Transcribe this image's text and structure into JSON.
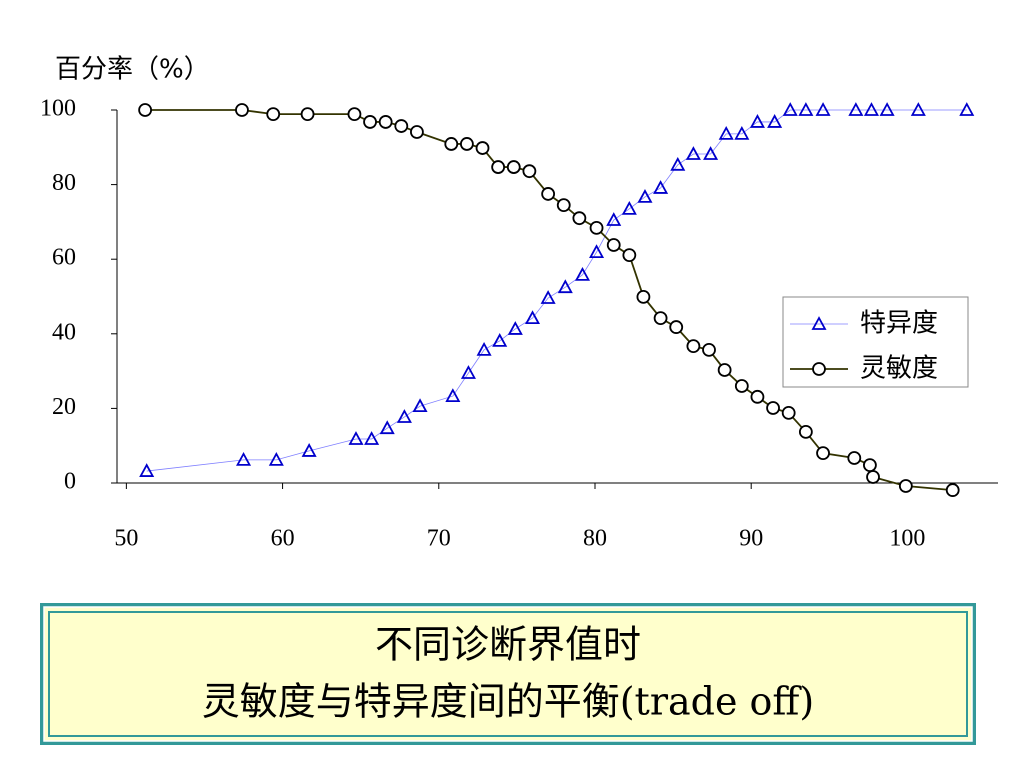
{
  "chart_data": {
    "type": "line",
    "y_axis_label": "百分率（%）",
    "caption_lines": [
      "不同诊断界值时",
      "灵敏度与特异度间的平衡(trade off)"
    ],
    "xlim": [
      49.4,
      105.8
    ],
    "xticks": [
      50,
      60,
      70,
      80,
      90,
      100
    ],
    "ylim": [
      0,
      100
    ],
    "yticks": [
      0,
      20,
      40,
      60,
      80,
      100
    ],
    "legend": "right",
    "series": [
      {
        "name": "特异度",
        "color": "#0000cc",
        "line_color": "#7f7fff",
        "marker": "triangle",
        "x": [
          51.3,
          57.5,
          59.6,
          61.7,
          64.7,
          65.7,
          66.7,
          67.8,
          68.8,
          70.9,
          71.9,
          72.9,
          73.9,
          74.9,
          76.0,
          77.0,
          78.1,
          79.2,
          80.1,
          81.2,
          82.2,
          83.2,
          84.2,
          85.3,
          86.3,
          87.4,
          88.4,
          89.4,
          90.4,
          91.5,
          92.5,
          93.5,
          94.6,
          96.7,
          97.7,
          98.7,
          100.7,
          103.8
        ],
        "values": [
          3.2,
          6.2,
          6.2,
          8.6,
          11.8,
          11.8,
          14.7,
          17.7,
          20.6,
          23.3,
          29.5,
          35.7,
          38.1,
          41.3,
          44.2,
          49.6,
          52.5,
          55.8,
          61.9,
          70.5,
          73.5,
          76.7,
          79.1,
          85.3,
          88.2,
          88.2,
          93.6,
          93.6,
          96.8,
          96.8,
          100,
          100,
          100,
          100,
          100,
          100,
          100,
          100
        ]
      },
      {
        "name": "灵敏度",
        "color": "#000000",
        "line_color": "#333300",
        "marker": "circle",
        "x": [
          51.2,
          57.4,
          59.4,
          61.6,
          64.6,
          65.6,
          66.6,
          67.6,
          68.6,
          70.8,
          71.8,
          72.8,
          73.8,
          74.8,
          75.8,
          77.0,
          78.0,
          79.0,
          80.1,
          81.2,
          82.2,
          83.1,
          84.2,
          85.2,
          86.3,
          87.3,
          88.3,
          89.4,
          90.4,
          91.4,
          92.4,
          93.5,
          94.6,
          96.6,
          97.6,
          97.8,
          99.9,
          102.9
        ],
        "values": [
          100,
          100,
          98.9,
          98.9,
          98.9,
          96.8,
          96.8,
          95.7,
          94.1,
          90.9,
          90.9,
          89.8,
          84.7,
          84.7,
          83.6,
          77.5,
          74.5,
          71.0,
          68.4,
          63.8,
          61.1,
          49.9,
          44.2,
          41.8,
          36.7,
          35.7,
          30.3,
          26.0,
          23.1,
          20.1,
          18.8,
          13.7,
          8.0,
          6.7,
          4.8,
          1.6,
          -0.8,
          -1.9
        ]
      }
    ]
  }
}
